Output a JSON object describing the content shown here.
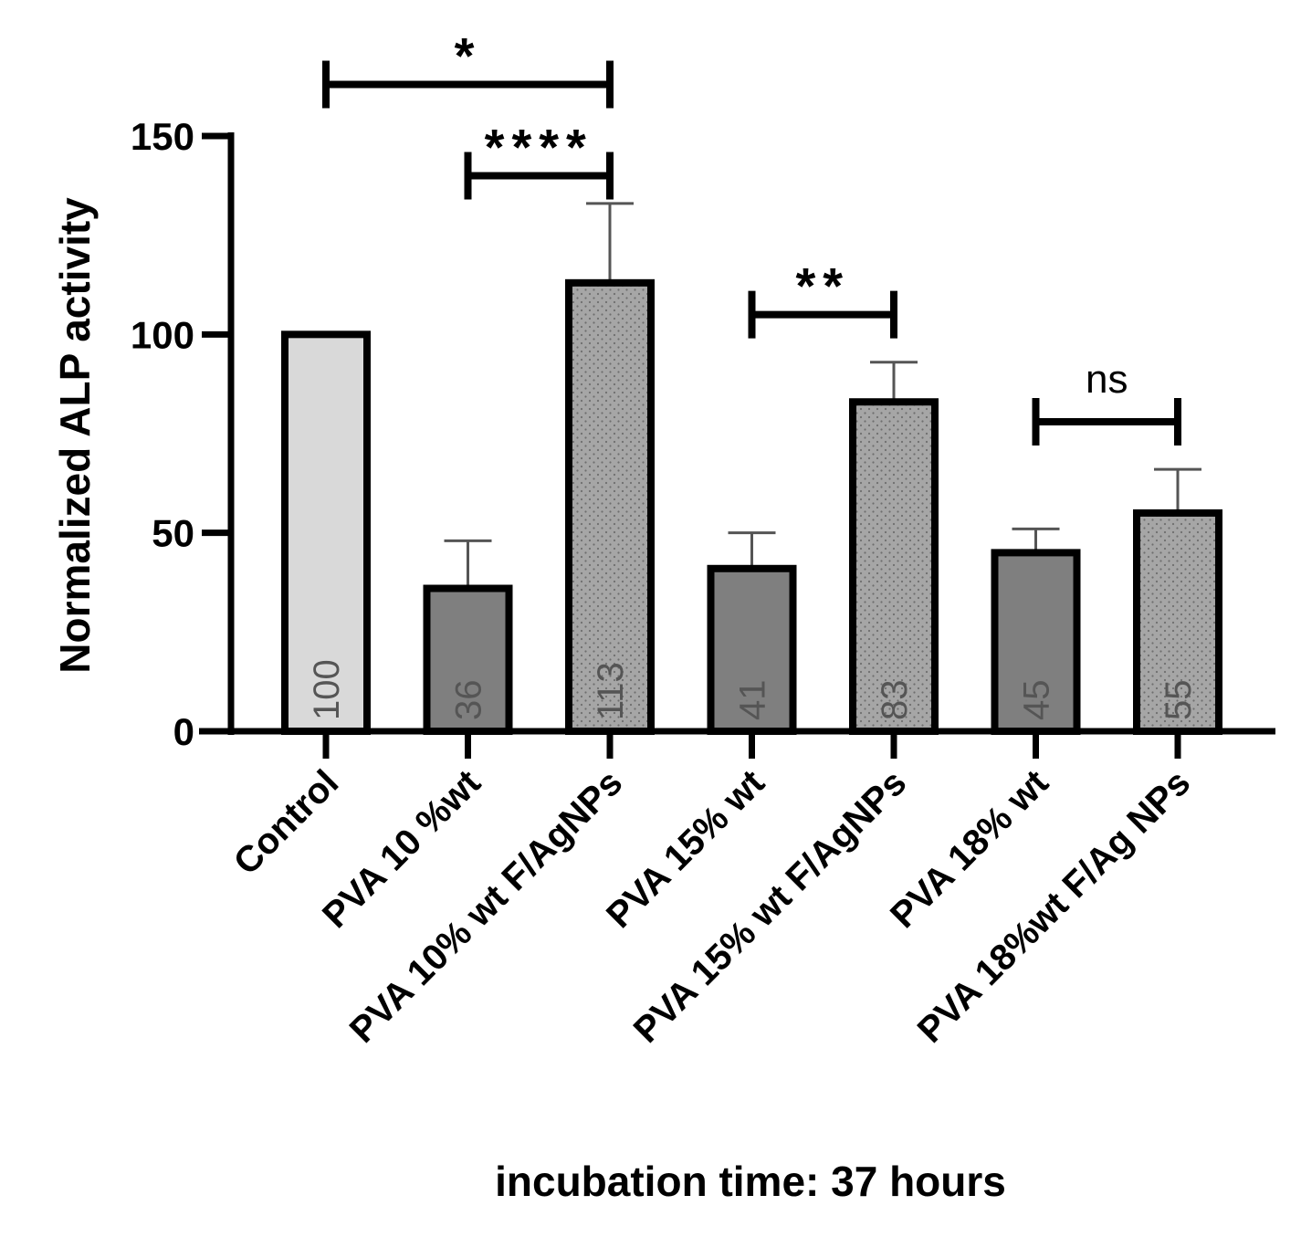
{
  "chart_data": {
    "type": "bar",
    "title": "",
    "xlabel": "incubation time: 37 hours",
    "ylabel": "Normalized ALP activity",
    "ylim": [
      0,
      150
    ],
    "yticks": [
      0,
      50,
      100,
      150
    ],
    "ytick_labels": [
      "0",
      "50",
      "100",
      "150"
    ],
    "categories": [
      "Control",
      "PVA 10 %wt",
      "PVA 10% wt F/AgNPs",
      "PVA 15% wt",
      "PVA 15% wt F/AgNPs",
      "PVA 18% wt",
      "PVA 18%wt F/Ag NPs"
    ],
    "values": [
      100,
      36,
      113,
      41,
      83,
      45,
      55
    ],
    "value_labels": [
      "100",
      "36",
      "113",
      "41",
      "83",
      "45",
      "55"
    ],
    "error_upper": [
      0,
      48,
      133,
      50,
      93,
      51,
      66
    ],
    "fill_styles": [
      "light",
      "dark",
      "dotted",
      "dark",
      "dotted",
      "dark",
      "dotted"
    ],
    "colors": {
      "light": "#d9d9d9",
      "dark": "#7f7f7f",
      "dotted": "#a6a6a6",
      "stroke": "#000000",
      "error": "#555555"
    },
    "significance": [
      {
        "from": 0,
        "to": 2,
        "label": "*",
        "y": 163
      },
      {
        "from": 1,
        "to": 2,
        "label": "****",
        "y": 140
      },
      {
        "from": 3,
        "to": 4,
        "label": "**",
        "y": 105
      },
      {
        "from": 5,
        "to": 6,
        "label": "ns",
        "y": 78
      }
    ],
    "grid": false,
    "legend": "none"
  }
}
